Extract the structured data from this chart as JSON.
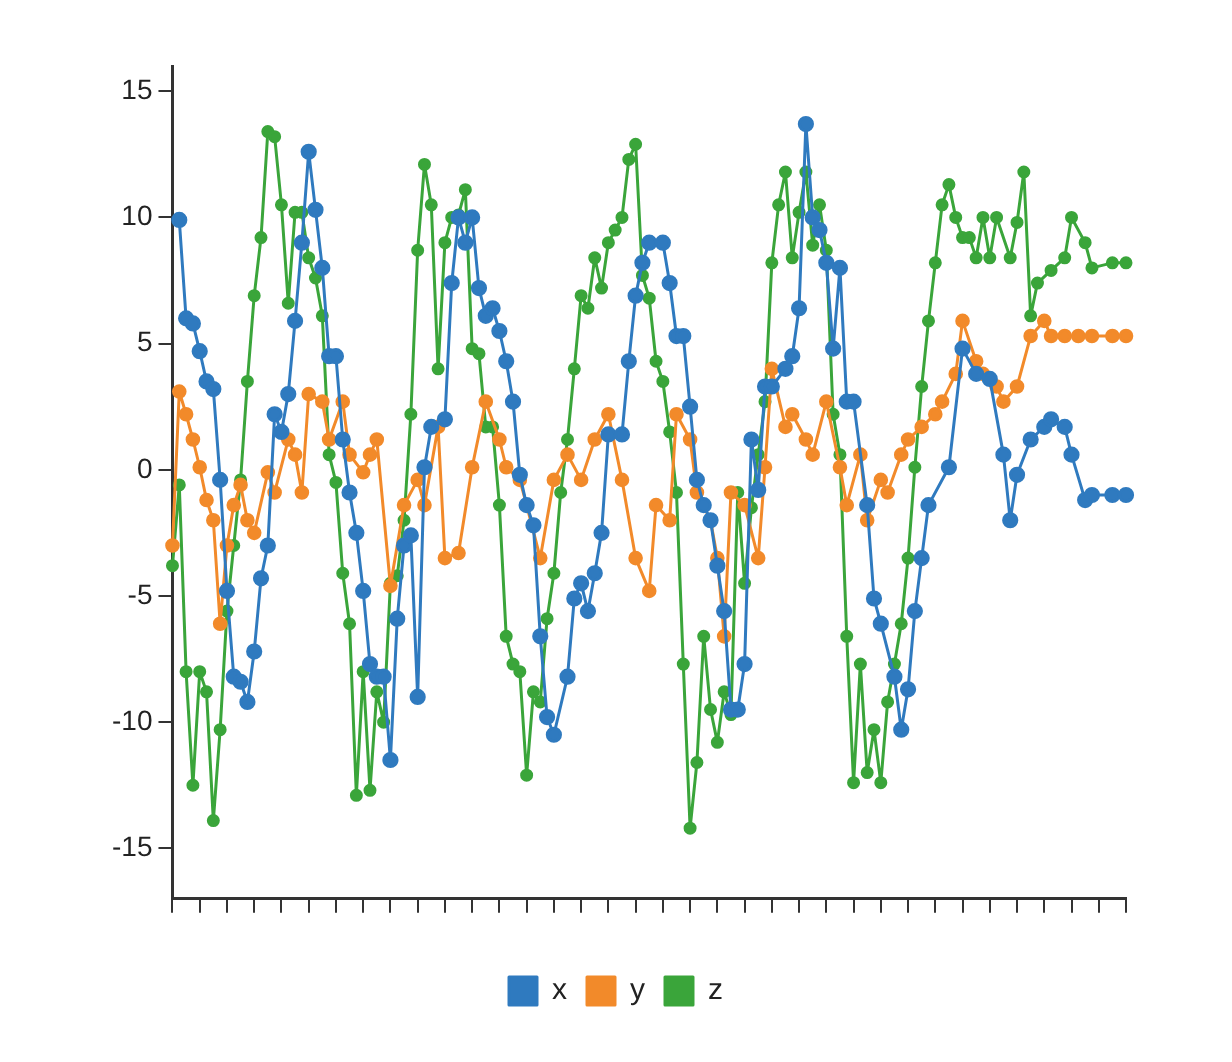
{
  "chart_data": {
    "type": "line",
    "categories": [
      null,
      null,
      null,
      null,
      null,
      null,
      null,
      null,
      null,
      null,
      null,
      null,
      null,
      null,
      null,
      null,
      null,
      null,
      null,
      null,
      null,
      null,
      null,
      null,
      null,
      null,
      null,
      null,
      null,
      null,
      null,
      null,
      null,
      null,
      null,
      null,
      null,
      null,
      null,
      null,
      null,
      null,
      null,
      null,
      null,
      null,
      null,
      null,
      null,
      null,
      null,
      null,
      null,
      null,
      null,
      null,
      null,
      null,
      null,
      null,
      null,
      null,
      null,
      null,
      null,
      null,
      null,
      null,
      null,
      null,
      null,
      null,
      null,
      null,
      null,
      null,
      null,
      null,
      null,
      null,
      null,
      null,
      null,
      null,
      null,
      null,
      null,
      null,
      null,
      null,
      null,
      null,
      null,
      null,
      null,
      null,
      null,
      null,
      null,
      null,
      null,
      null,
      null,
      null,
      null,
      null,
      null,
      null,
      null,
      null,
      null,
      null,
      null,
      null,
      null,
      null,
      null,
      null,
      null,
      null,
      null,
      null,
      null,
      null,
      null,
      null,
      null,
      null,
      null,
      null,
      null,
      null,
      null,
      null,
      null,
      null,
      null,
      null,
      null,
      null,
      null
    ],
    "ylim": [
      -17,
      16
    ],
    "yticks": [
      -15,
      -10,
      -5,
      0,
      5,
      10,
      15
    ],
    "grid": false,
    "legend": "bottom",
    "marker": "circle",
    "line_style": "solid",
    "series": [
      {
        "name": "x",
        "color": "#2f7abf",
        "values": [
          null,
          9.9,
          6.0,
          5.8,
          4.7,
          3.5,
          3.2,
          -0.4,
          -4.8,
          -8.2,
          -8.4,
          -9.2,
          -7.2,
          -4.3,
          -3,
          2.2,
          1.5,
          3,
          5.9,
          9,
          12.6,
          10.3,
          8,
          4.5,
          4.5,
          1.2,
          -0.9,
          -2.5,
          -4.8,
          -7.7,
          -8.2,
          -8.2,
          -11.5,
          -5.9,
          -3,
          -2.6,
          -9,
          0.1,
          1.7,
          null,
          2.0,
          7.4,
          10,
          9,
          10,
          7.2,
          6.1,
          6.4,
          5.5,
          4.3,
          2.7,
          -0.2,
          -1.4,
          -2.2,
          -6.6,
          -9.8,
          -10.5,
          null,
          -8.2,
          -5.1,
          -4.5,
          -5.6,
          -4.1,
          -2.5,
          1.4,
          null,
          1.4,
          4.3,
          6.9,
          8.2,
          9,
          null,
          9,
          7.4,
          5.3,
          5.3,
          2.5,
          -0.4,
          -1.4,
          -2,
          -3.8,
          -5.6,
          -9.5,
          -9.5,
          -7.7,
          1.2,
          -0.8,
          3.3,
          3.3,
          null,
          4,
          4.5,
          6.4,
          13.7,
          10,
          9.5,
          8.2,
          4.8,
          8,
          2.7,
          2.7,
          null,
          -1.4,
          -5.1,
          -6.1,
          null,
          -8.2,
          -10.3,
          -8.7,
          -5.6,
          -3.5,
          -1.4,
          null,
          null,
          0.1,
          null,
          4.8,
          null,
          3.8,
          null,
          3.6,
          null,
          0.6,
          -2,
          -0.2,
          null,
          1.2,
          null,
          1.7,
          2,
          null,
          1.7,
          0.6,
          null,
          -1.2,
          -1.0,
          null,
          null,
          -1.0,
          null,
          -1.0
        ]
      },
      {
        "name": "y",
        "color": "#f28a2a",
        "values": [
          -3.0,
          3.1,
          2.2,
          1.2,
          0.1,
          -1.2,
          -2.0,
          -6.1,
          -3.0,
          -1.4,
          -0.6,
          -2.0,
          -2.5,
          null,
          -0.1,
          -0.9,
          null,
          1.2,
          0.6,
          -0.9,
          3.0,
          null,
          2.7,
          1.2,
          null,
          2.7,
          0.6,
          null,
          -0.1,
          0.6,
          1.2,
          null,
          -4.6,
          null,
          -1.4,
          null,
          -0.4,
          -1.4,
          null,
          1.7,
          -3.5,
          null,
          -3.3,
          null,
          0.1,
          null,
          2.7,
          null,
          1.2,
          0.1,
          null,
          -0.4,
          -1.4,
          null,
          -3.5,
          null,
          -0.4,
          null,
          0.6,
          null,
          -0.4,
          null,
          1.2,
          null,
          2.2,
          null,
          -0.4,
          null,
          -3.5,
          null,
          -4.8,
          -1.4,
          null,
          -2.0,
          2.2,
          null,
          1.2,
          -0.9,
          null,
          -2.0,
          -3.5,
          -6.6,
          -0.9,
          null,
          -1.4,
          null,
          -3.5,
          0.1,
          4.0,
          null,
          1.7,
          2.2,
          null,
          1.2,
          0.6,
          null,
          2.7,
          null,
          0.1,
          -1.4,
          null,
          0.6,
          -2.0,
          null,
          -0.4,
          -0.9,
          null,
          0.6,
          1.2,
          null,
          1.7,
          null,
          2.2,
          2.7,
          null,
          3.8,
          5.9,
          null,
          4.3,
          3.8,
          null,
          3.3,
          2.7,
          null,
          3.3,
          null,
          5.3,
          null,
          5.9,
          5.3,
          null,
          5.3,
          null,
          5.3,
          null,
          5.3,
          null,
          null,
          5.3,
          null,
          5.3
        ]
      },
      {
        "name": "z",
        "color": "#3aa53a",
        "values": [
          -3.8,
          -0.6,
          -8,
          -12.5,
          -8,
          -8.8,
          -13.9,
          -10.3,
          -5.6,
          -3,
          -0.4,
          3.5,
          6.9,
          9.2,
          13.4,
          13.2,
          10.5,
          6.6,
          10.2,
          10.2,
          8.4,
          7.6,
          6.1,
          0.6,
          -0.5,
          -4.1,
          -6.1,
          -12.9,
          -8,
          -12.7,
          -8.8,
          -10,
          -4.5,
          -4.2,
          -2,
          2.2,
          8.7,
          12.1,
          10.5,
          4,
          9,
          10,
          10.1,
          11.1,
          4.8,
          4.6,
          1.7,
          1.7,
          -1.4,
          -6.6,
          -7.7,
          -8,
          -12.1,
          -8.8,
          -9.2,
          -5.9,
          -4.1,
          -0.9,
          1.2,
          4,
          6.9,
          6.4,
          8.4,
          7.2,
          9,
          9.5,
          10,
          12.3,
          12.9,
          7.7,
          6.8,
          4.3,
          3.5,
          1.5,
          -0.9,
          -7.7,
          -14.2,
          -11.6,
          -6.6,
          -9.5,
          -10.8,
          -8.8,
          -9.7,
          -0.9,
          -4.5,
          -1.5,
          0.6,
          2.7,
          8.2,
          10.5,
          11.8,
          8.4,
          10.2,
          11.8,
          8.9,
          10.5,
          8.7,
          2.2,
          0.6,
          -6.6,
          -12.4,
          -7.7,
          -12,
          -10.3,
          -12.4,
          -9.2,
          -7.7,
          -6.1,
          -3.5,
          0.1,
          3.3,
          5.9,
          8.2,
          10.5,
          11.3,
          10,
          9.2,
          9.2,
          8.4,
          10,
          8.4,
          10,
          null,
          8.4,
          9.8,
          11.8,
          6.1,
          7.4,
          null,
          7.9,
          null,
          8.4,
          10,
          null,
          9,
          8,
          null,
          null,
          8.2,
          null,
          8.2
        ]
      }
    ]
  }
}
